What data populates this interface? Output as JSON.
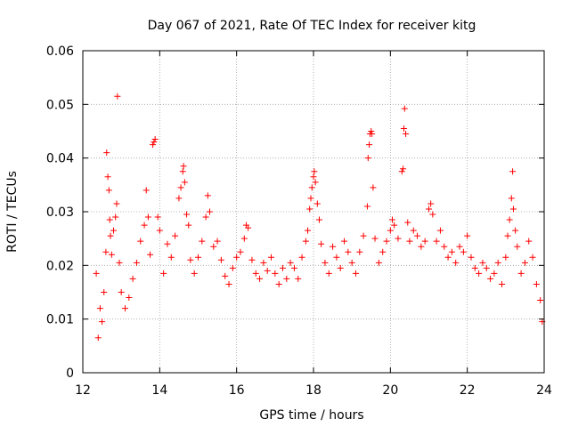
{
  "chart_data": {
    "type": "scatter",
    "title": "Day 067 of 2021, Rate Of TEC Index for receiver kitg",
    "xlabel": "GPS time / hours",
    "ylabel": "ROTI / TECUs",
    "xlim": [
      12,
      24
    ],
    "ylim": [
      0,
      0.06
    ],
    "x_ticks": [
      12,
      14,
      16,
      18,
      20,
      22,
      24
    ],
    "x_tick_labels": [
      "12",
      "14",
      "16",
      "18",
      "20",
      "22",
      "24"
    ],
    "y_ticks": [
      0,
      0.01,
      0.02,
      0.03,
      0.04,
      0.05,
      0.06
    ],
    "y_tick_labels": [
      "0",
      "0.01",
      "0.02",
      "0.03",
      "0.04",
      "0.05",
      "0.06"
    ],
    "grid": true,
    "marker": "+",
    "color": "#ff0000",
    "series": [
      {
        "name": "ROTI",
        "points": [
          [
            12.35,
            0.0185
          ],
          [
            12.4,
            0.0065
          ],
          [
            12.45,
            0.012
          ],
          [
            12.5,
            0.0095
          ],
          [
            12.55,
            0.015
          ],
          [
            12.6,
            0.0225
          ],
          [
            12.62,
            0.041
          ],
          [
            12.65,
            0.0365
          ],
          [
            12.68,
            0.034
          ],
          [
            12.7,
            0.0285
          ],
          [
            12.72,
            0.0255
          ],
          [
            12.75,
            0.022
          ],
          [
            12.8,
            0.0265
          ],
          [
            12.85,
            0.029
          ],
          [
            12.88,
            0.0315
          ],
          [
            12.9,
            0.0515
          ],
          [
            12.95,
            0.0205
          ],
          [
            13.0,
            0.015
          ],
          [
            13.1,
            0.012
          ],
          [
            13.2,
            0.014
          ],
          [
            13.3,
            0.0175
          ],
          [
            13.4,
            0.0205
          ],
          [
            13.5,
            0.0245
          ],
          [
            13.6,
            0.0275
          ],
          [
            13.65,
            0.034
          ],
          [
            13.7,
            0.029
          ],
          [
            13.75,
            0.022
          ],
          [
            13.82,
            0.0425
          ],
          [
            13.85,
            0.043
          ],
          [
            13.88,
            0.0435
          ],
          [
            13.95,
            0.029
          ],
          [
            14.0,
            0.0265
          ],
          [
            14.1,
            0.0185
          ],
          [
            14.2,
            0.024
          ],
          [
            14.3,
            0.0215
          ],
          [
            14.4,
            0.0255
          ],
          [
            14.5,
            0.0325
          ],
          [
            14.55,
            0.0345
          ],
          [
            14.6,
            0.0375
          ],
          [
            14.62,
            0.0385
          ],
          [
            14.65,
            0.0355
          ],
          [
            14.7,
            0.0295
          ],
          [
            14.75,
            0.0275
          ],
          [
            14.8,
            0.021
          ],
          [
            14.9,
            0.0185
          ],
          [
            15.0,
            0.0215
          ],
          [
            15.1,
            0.0245
          ],
          [
            15.2,
            0.029
          ],
          [
            15.25,
            0.033
          ],
          [
            15.3,
            0.03
          ],
          [
            15.4,
            0.0235
          ],
          [
            15.5,
            0.0245
          ],
          [
            15.6,
            0.021
          ],
          [
            15.7,
            0.018
          ],
          [
            15.8,
            0.0165
          ],
          [
            15.9,
            0.0195
          ],
          [
            16.0,
            0.0215
          ],
          [
            16.1,
            0.0225
          ],
          [
            16.2,
            0.025
          ],
          [
            16.25,
            0.0275
          ],
          [
            16.3,
            0.027
          ],
          [
            16.4,
            0.021
          ],
          [
            16.5,
            0.0185
          ],
          [
            16.6,
            0.0175
          ],
          [
            16.7,
            0.0205
          ],
          [
            16.8,
            0.019
          ],
          [
            16.9,
            0.0215
          ],
          [
            17.0,
            0.0185
          ],
          [
            17.1,
            0.0165
          ],
          [
            17.2,
            0.0195
          ],
          [
            17.3,
            0.0175
          ],
          [
            17.4,
            0.0205
          ],
          [
            17.5,
            0.0195
          ],
          [
            17.6,
            0.0175
          ],
          [
            17.7,
            0.0215
          ],
          [
            17.8,
            0.0245
          ],
          [
            17.85,
            0.0265
          ],
          [
            17.9,
            0.0305
          ],
          [
            17.93,
            0.0325
          ],
          [
            17.96,
            0.0345
          ],
          [
            18.0,
            0.0365
          ],
          [
            18.02,
            0.0375
          ],
          [
            18.05,
            0.0355
          ],
          [
            18.1,
            0.0315
          ],
          [
            18.15,
            0.0285
          ],
          [
            18.2,
            0.024
          ],
          [
            18.3,
            0.0205
          ],
          [
            18.4,
            0.0185
          ],
          [
            18.5,
            0.0235
          ],
          [
            18.6,
            0.0215
          ],
          [
            18.7,
            0.0195
          ],
          [
            18.8,
            0.0245
          ],
          [
            18.9,
            0.0225
          ],
          [
            19.0,
            0.0205
          ],
          [
            19.1,
            0.0185
          ],
          [
            19.2,
            0.0225
          ],
          [
            19.3,
            0.0255
          ],
          [
            19.4,
            0.031
          ],
          [
            19.42,
            0.04
          ],
          [
            19.45,
            0.0425
          ],
          [
            19.47,
            0.0445
          ],
          [
            19.5,
            0.045
          ],
          [
            19.52,
            0.0445
          ],
          [
            19.55,
            0.0345
          ],
          [
            19.6,
            0.025
          ],
          [
            19.7,
            0.0205
          ],
          [
            19.8,
            0.0225
          ],
          [
            19.9,
            0.0245
          ],
          [
            20.0,
            0.0265
          ],
          [
            20.05,
            0.0285
          ],
          [
            20.1,
            0.0275
          ],
          [
            20.2,
            0.025
          ],
          [
            20.3,
            0.0375
          ],
          [
            20.33,
            0.038
          ],
          [
            20.35,
            0.0455
          ],
          [
            20.37,
            0.0492
          ],
          [
            20.4,
            0.0445
          ],
          [
            20.45,
            0.028
          ],
          [
            20.5,
            0.0245
          ],
          [
            20.6,
            0.0265
          ],
          [
            20.7,
            0.0255
          ],
          [
            20.8,
            0.0235
          ],
          [
            20.9,
            0.0245
          ],
          [
            21.0,
            0.0305
          ],
          [
            21.05,
            0.0315
          ],
          [
            21.1,
            0.0295
          ],
          [
            21.2,
            0.0245
          ],
          [
            21.3,
            0.0265
          ],
          [
            21.4,
            0.0235
          ],
          [
            21.5,
            0.0215
          ],
          [
            21.6,
            0.0225
          ],
          [
            21.7,
            0.0205
          ],
          [
            21.8,
            0.0235
          ],
          [
            21.9,
            0.0225
          ],
          [
            22.0,
            0.0255
          ],
          [
            22.1,
            0.0215
          ],
          [
            22.2,
            0.0195
          ],
          [
            22.3,
            0.0185
          ],
          [
            22.4,
            0.0205
          ],
          [
            22.5,
            0.0195
          ],
          [
            22.6,
            0.0175
          ],
          [
            22.7,
            0.0185
          ],
          [
            22.8,
            0.0205
          ],
          [
            22.9,
            0.0165
          ],
          [
            23.0,
            0.0215
          ],
          [
            23.05,
            0.0255
          ],
          [
            23.1,
            0.0285
          ],
          [
            23.15,
            0.0325
          ],
          [
            23.18,
            0.0375
          ],
          [
            23.2,
            0.0305
          ],
          [
            23.25,
            0.0265
          ],
          [
            23.3,
            0.0235
          ],
          [
            23.4,
            0.0185
          ],
          [
            23.5,
            0.0205
          ],
          [
            23.6,
            0.0245
          ],
          [
            23.7,
            0.0215
          ],
          [
            23.8,
            0.0165
          ],
          [
            23.9,
            0.0135
          ],
          [
            23.95,
            0.0095
          ]
        ]
      }
    ]
  }
}
